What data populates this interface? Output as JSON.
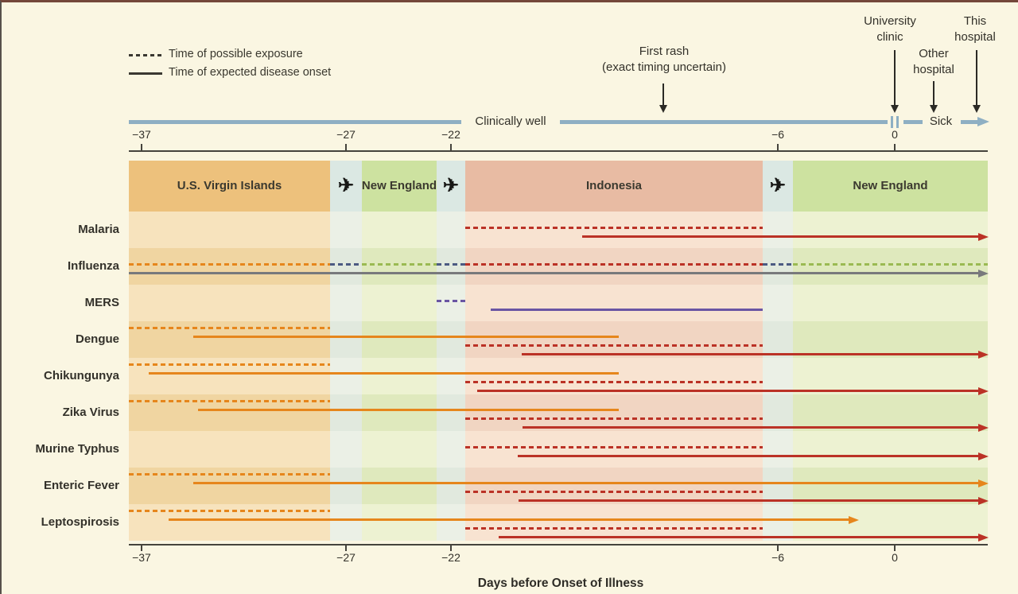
{
  "legend": {
    "items": [
      {
        "style": "dashed",
        "label": "Time of possible exposure"
      },
      {
        "style": "solid",
        "label": "Time of expected disease onset"
      }
    ]
  },
  "timeline_bar": {
    "clinically_well": "Clinically well",
    "sick": "Sick"
  },
  "annotations": {
    "first_rash": [
      "First rash",
      "(exact timing uncertain)"
    ],
    "university_clinic": [
      "University",
      "clinic"
    ],
    "other_hospital": [
      "Other",
      "hospital"
    ],
    "this_hospital": [
      "This",
      "hospital"
    ]
  },
  "axis": {
    "title": "Days before Onset of Illness",
    "ticks": [
      {
        "label": "−37",
        "day": -37,
        "pct": 1.48
      },
      {
        "label": "−27",
        "day": -27,
        "pct": 25.28
      },
      {
        "label": "−22",
        "day": -22,
        "pct": 37.5
      },
      {
        "label": "−6",
        "day": -6,
        "pct": 75.56
      },
      {
        "label": "0",
        "day": 0,
        "pct": 89.17
      }
    ]
  },
  "palette": {
    "orange": {
      "header": "#edc17c",
      "light": "#f7e3bd",
      "dark": "#f0d5a1"
    },
    "flight": {
      "header": "#dbe8e3",
      "light": "#ebf0e6",
      "dark": "#e1e9de"
    },
    "green": {
      "header": "#cde2a0",
      "light": "#edf2d2",
      "dark": "#dfe9bd"
    },
    "salmon": {
      "header": "#e8bba3",
      "light": "#f8e3d1",
      "dark": "#f1d5c2"
    }
  },
  "line_colors": {
    "red": "#bb3226",
    "orange": "#e6861c",
    "purple": "#6a55a3",
    "navy": "#4c5a82",
    "green": "#9aba52",
    "gray": "#78797c"
  },
  "bar_color": "#8eafc3",
  "chart_data": {
    "type": "timeline",
    "x_axis": {
      "title": "Days before Onset of Illness",
      "tick_days": [
        -37,
        -27,
        -22,
        -6,
        0
      ],
      "range_days": [
        -37.5,
        4.5
      ]
    },
    "locations": [
      {
        "name": "U.S. Virgin Islands",
        "kind": "place",
        "pal": "orange",
        "from_pct": 0,
        "to_pct": 23.43,
        "from_day": -37.5,
        "to_day": -27.5
      },
      {
        "name": "flight",
        "kind": "flight",
        "pal": "flight",
        "from_pct": 23.43,
        "to_pct": 27.13,
        "from_day": -27.5,
        "to_day": -26
      },
      {
        "name": "New England",
        "kind": "place",
        "pal": "green",
        "from_pct": 27.13,
        "to_pct": 35.83,
        "from_day": -26,
        "to_day": -22.5
      },
      {
        "name": "flight",
        "kind": "flight",
        "pal": "flight",
        "from_pct": 35.83,
        "to_pct": 39.17,
        "from_day": -22.5,
        "to_day": -21
      },
      {
        "name": "Indonesia",
        "kind": "place",
        "pal": "salmon",
        "from_pct": 39.17,
        "to_pct": 73.8,
        "from_day": -21,
        "to_day": -6.5
      },
      {
        "name": "flight",
        "kind": "flight",
        "pal": "flight",
        "from_pct": 73.8,
        "to_pct": 77.31,
        "from_day": -6.5,
        "to_day": -5
      },
      {
        "name": "New England",
        "kind": "place",
        "pal": "green",
        "from_pct": 77.31,
        "to_pct": 100,
        "from_day": -5,
        "to_day": 4.5
      }
    ],
    "diseases": [
      {
        "name": "Malaria",
        "layout": "two",
        "segments": [
          {
            "meaning": "possible_exposure",
            "style": "dashed",
            "color": "red",
            "from_day": -21,
            "to_day": -6.5,
            "from_pct": 39.17,
            "to_pct": 73.8,
            "track": 0,
            "arrow": false
          },
          {
            "meaning": "expected_onset",
            "style": "solid",
            "color": "red",
            "from_day": -15,
            "to_day": 4.5,
            "from_pct": 52.8,
            "to_pct": 100,
            "track": 1,
            "arrow": true
          }
        ]
      },
      {
        "name": "Influenza",
        "layout": "two",
        "segments": [
          {
            "meaning": "possible_exposure",
            "style": "dashed",
            "color": "orange",
            "from_day": -37.5,
            "to_day": -27.5,
            "from_pct": 0,
            "to_pct": 23.43,
            "track": 0,
            "arrow": false
          },
          {
            "meaning": "possible_exposure",
            "style": "dashed",
            "color": "navy",
            "from_day": -27.5,
            "to_day": -26,
            "from_pct": 23.43,
            "to_pct": 27.13,
            "track": 0,
            "arrow": false
          },
          {
            "meaning": "possible_exposure",
            "style": "dashed",
            "color": "green",
            "from_day": -26,
            "to_day": -22.5,
            "from_pct": 27.13,
            "to_pct": 35.83,
            "track": 0,
            "arrow": false
          },
          {
            "meaning": "possible_exposure",
            "style": "dashed",
            "color": "navy",
            "from_day": -22.5,
            "to_day": -21,
            "from_pct": 35.83,
            "to_pct": 39.17,
            "track": 0,
            "arrow": false
          },
          {
            "meaning": "possible_exposure",
            "style": "dashed",
            "color": "red",
            "from_day": -21,
            "to_day": -6.5,
            "from_pct": 39.17,
            "to_pct": 73.8,
            "track": 0,
            "arrow": false
          },
          {
            "meaning": "possible_exposure",
            "style": "dashed",
            "color": "navy",
            "from_day": -6.5,
            "to_day": -5,
            "from_pct": 73.8,
            "to_pct": 77.31,
            "track": 0,
            "arrow": false
          },
          {
            "meaning": "possible_exposure",
            "style": "dashed",
            "color": "green",
            "from_day": -5,
            "to_day": 4.5,
            "from_pct": 77.31,
            "to_pct": 100,
            "track": 0,
            "arrow": false
          },
          {
            "meaning": "expected_onset",
            "style": "solid",
            "color": "gray",
            "from_day": -37.5,
            "to_day": 4.5,
            "from_pct": 0,
            "to_pct": 100,
            "track": 1,
            "arrow": true
          }
        ]
      },
      {
        "name": "MERS",
        "layout": "two",
        "segments": [
          {
            "meaning": "possible_exposure",
            "style": "dashed",
            "color": "purple",
            "from_day": -22.5,
            "to_day": -21,
            "from_pct": 35.83,
            "to_pct": 39.17,
            "track": 0,
            "arrow": false
          },
          {
            "meaning": "expected_onset",
            "style": "solid",
            "color": "purple",
            "from_day": -20,
            "to_day": -6.5,
            "from_pct": 42.1,
            "to_pct": 73.8,
            "track": 1,
            "arrow": false
          }
        ]
      },
      {
        "name": "Dengue",
        "layout": "four",
        "segments": [
          {
            "meaning": "possible_exposure",
            "style": "dashed",
            "color": "orange",
            "from_day": -37.5,
            "to_day": -27.5,
            "from_pct": 0,
            "to_pct": 23.43,
            "track": 0,
            "arrow": false
          },
          {
            "meaning": "expected_onset",
            "style": "solid",
            "color": "orange",
            "from_day": -34.5,
            "to_day": -13.5,
            "from_pct": 7.5,
            "to_pct": 57,
            "track": 1,
            "arrow": false
          },
          {
            "meaning": "possible_exposure",
            "style": "dashed",
            "color": "red",
            "from_day": -21,
            "to_day": -6.5,
            "from_pct": 39.17,
            "to_pct": 73.8,
            "track": 2,
            "arrow": false
          },
          {
            "meaning": "expected_onset",
            "style": "solid",
            "color": "red",
            "from_day": -18,
            "to_day": 4.5,
            "from_pct": 45.7,
            "to_pct": 100,
            "track": 3,
            "arrow": true
          }
        ]
      },
      {
        "name": "Chikungunya",
        "layout": "four",
        "segments": [
          {
            "meaning": "possible_exposure",
            "style": "dashed",
            "color": "orange",
            "from_day": -37.5,
            "to_day": -27.5,
            "from_pct": 0,
            "to_pct": 23.43,
            "track": 0,
            "arrow": false
          },
          {
            "meaning": "expected_onset",
            "style": "solid",
            "color": "orange",
            "from_day": -36.5,
            "to_day": -13.5,
            "from_pct": 2.3,
            "to_pct": 57,
            "track": 1,
            "arrow": false
          },
          {
            "meaning": "possible_exposure",
            "style": "dashed",
            "color": "red",
            "from_day": -21,
            "to_day": -6.5,
            "from_pct": 39.17,
            "to_pct": 73.8,
            "track": 2,
            "arrow": false
          },
          {
            "meaning": "expected_onset",
            "style": "solid",
            "color": "red",
            "from_day": -20.5,
            "to_day": 4.5,
            "from_pct": 40.6,
            "to_pct": 100,
            "track": 3,
            "arrow": true
          }
        ]
      },
      {
        "name": "Zika Virus",
        "layout": "four",
        "segments": [
          {
            "meaning": "possible_exposure",
            "style": "dashed",
            "color": "orange",
            "from_day": -37.5,
            "to_day": -27.5,
            "from_pct": 0,
            "to_pct": 23.43,
            "track": 0,
            "arrow": false
          },
          {
            "meaning": "expected_onset",
            "style": "solid",
            "color": "orange",
            "from_day": -34,
            "to_day": -13.5,
            "from_pct": 8.1,
            "to_pct": 57,
            "track": 1,
            "arrow": false
          },
          {
            "meaning": "possible_exposure",
            "style": "dashed",
            "color": "red",
            "from_day": -21,
            "to_day": -6.5,
            "from_pct": 39.17,
            "to_pct": 73.8,
            "track": 2,
            "arrow": false
          },
          {
            "meaning": "expected_onset",
            "style": "solid",
            "color": "red",
            "from_day": -18,
            "to_day": 4.5,
            "from_pct": 45.8,
            "to_pct": 100,
            "track": 3,
            "arrow": true
          }
        ]
      },
      {
        "name": "Murine Typhus",
        "layout": "two",
        "segments": [
          {
            "meaning": "possible_exposure",
            "style": "dashed",
            "color": "red",
            "from_day": -21,
            "to_day": -6.5,
            "from_pct": 39.17,
            "to_pct": 73.8,
            "track": 0,
            "arrow": false
          },
          {
            "meaning": "expected_onset",
            "style": "solid",
            "color": "red",
            "from_day": -18.5,
            "to_day": 4.5,
            "from_pct": 45.3,
            "to_pct": 100,
            "track": 1,
            "arrow": true
          }
        ]
      },
      {
        "name": "Enteric Fever",
        "layout": "four",
        "segments": [
          {
            "meaning": "possible_exposure",
            "style": "dashed",
            "color": "orange",
            "from_day": -37.5,
            "to_day": -27.5,
            "from_pct": 0,
            "to_pct": 23.43,
            "track": 0,
            "arrow": false
          },
          {
            "meaning": "expected_onset",
            "style": "solid",
            "color": "orange",
            "from_day": -34.5,
            "to_day": 4.5,
            "from_pct": 7.5,
            "to_pct": 100,
            "track": 1,
            "arrow": true
          },
          {
            "meaning": "possible_exposure",
            "style": "dashed",
            "color": "red",
            "from_day": -21,
            "to_day": -6.5,
            "from_pct": 39.17,
            "to_pct": 73.8,
            "track": 2,
            "arrow": false
          },
          {
            "meaning": "expected_onset",
            "style": "solid",
            "color": "red",
            "from_day": -18.5,
            "to_day": 4.5,
            "from_pct": 45.4,
            "to_pct": 100,
            "track": 3,
            "arrow": true
          }
        ]
      },
      {
        "name": "Leptospirosis",
        "layout": "four",
        "segments": [
          {
            "meaning": "possible_exposure",
            "style": "dashed",
            "color": "orange",
            "from_day": -37.5,
            "to_day": -27.5,
            "from_pct": 0,
            "to_pct": 23.43,
            "track": 0,
            "arrow": false
          },
          {
            "meaning": "expected_onset",
            "style": "solid",
            "color": "orange",
            "from_day": -35.5,
            "to_day": -2,
            "from_pct": 4.6,
            "to_pct": 84.9,
            "track": 1,
            "arrow": true
          },
          {
            "meaning": "possible_exposure",
            "style": "dashed",
            "color": "red",
            "from_day": -21,
            "to_day": -6.5,
            "from_pct": 39.17,
            "to_pct": 73.8,
            "track": 2,
            "arrow": false
          },
          {
            "meaning": "expected_onset",
            "style": "solid",
            "color": "red",
            "from_day": -19.5,
            "to_day": 4.5,
            "from_pct": 43.1,
            "to_pct": 100,
            "track": 3,
            "arrow": true
          }
        ]
      }
    ]
  }
}
